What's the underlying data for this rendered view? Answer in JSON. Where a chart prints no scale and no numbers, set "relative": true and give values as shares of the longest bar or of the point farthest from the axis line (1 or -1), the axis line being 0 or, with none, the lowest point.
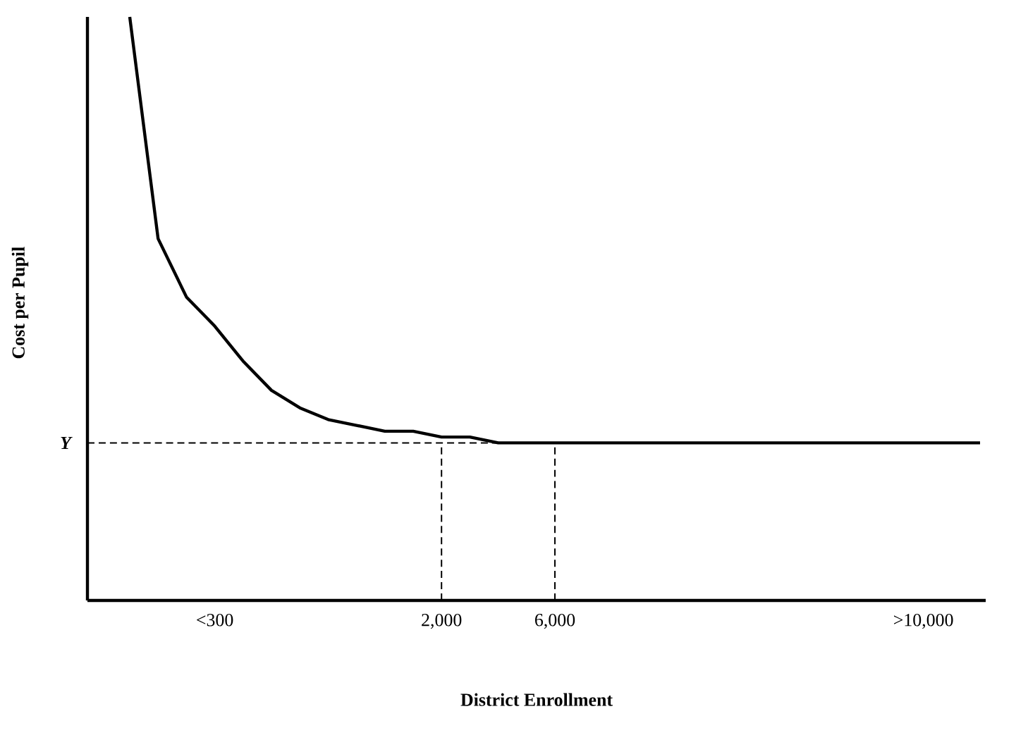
{
  "chart_data": {
    "type": "line",
    "relative": true,
    "xlabel": "District Enrollment",
    "ylabel": "Cost per Pupil",
    "categories": [
      null,
      null,
      null,
      "<300",
      null,
      null,
      null,
      null,
      null,
      null,
      null,
      "2,000",
      null,
      null,
      null,
      "6,000",
      null,
      null,
      null,
      null,
      null,
      null,
      null,
      null,
      null,
      null,
      null,
      null,
      ">10,000",
      null,
      null
    ],
    "series": [
      {
        "color": "#000000",
        "line_style": "solid",
        "values": [
          1.0,
          0.62,
          0.52,
          0.47,
          0.41,
          0.36,
          0.33,
          0.31,
          0.3,
          0.29,
          0.29,
          0.28,
          0.28,
          0.27,
          0.27,
          0.27,
          0.27,
          0.27,
          0.27,
          0.27,
          0.27,
          0.27,
          0.27,
          0.27,
          0.27,
          0.27,
          0.27,
          0.27,
          0.27,
          0.27,
          0.27
        ]
      }
    ],
    "ref_lines": [
      {
        "axis": "y",
        "value": 0.27,
        "label": "Y",
        "line_style": "dashed"
      },
      {
        "axis": "x",
        "value": "2,000",
        "line_style": "dashed"
      },
      {
        "axis": "x",
        "value": "6,000",
        "line_style": "dashed"
      }
    ]
  }
}
